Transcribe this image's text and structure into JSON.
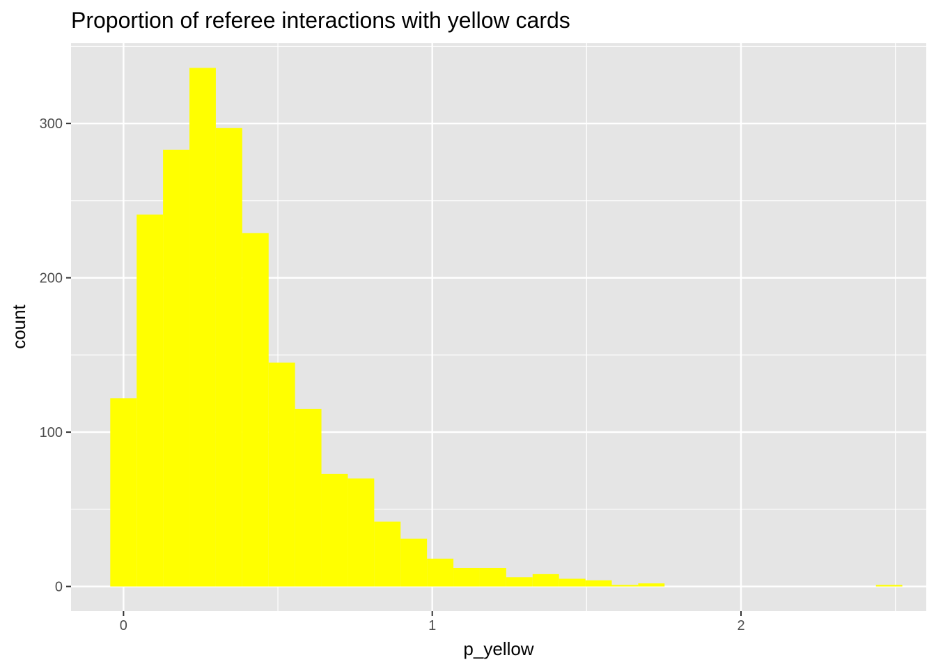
{
  "chart_data": {
    "type": "bar",
    "title": "Proportion of referee interactions with yellow cards",
    "xlabel": "p_yellow",
    "ylabel": "count",
    "x_ticks": [
      0,
      1,
      2
    ],
    "x_tick_labels": [
      "0",
      "1",
      "2"
    ],
    "y_ticks": [
      0,
      100,
      200,
      300
    ],
    "y_tick_labels": [
      "0",
      "100",
      "200",
      "300"
    ],
    "xlim": [
      -0.17,
      2.6
    ],
    "ylim": [
      -16,
      352
    ],
    "grid": true,
    "bin_width": 0.0855,
    "bin_starts": [
      -0.043,
      0.0425,
      0.128,
      0.2135,
      0.299,
      0.3845,
      0.47,
      0.5555,
      0.641,
      0.7265,
      0.812,
      0.8975,
      0.983,
      1.0685,
      1.154,
      1.2395,
      1.325,
      1.4105,
      1.496,
      1.5815,
      1.667,
      2.437
    ],
    "values": [
      122,
      241,
      283,
      336,
      297,
      229,
      145,
      115,
      73,
      70,
      42,
      31,
      18,
      12,
      12,
      6,
      8,
      5,
      4,
      1,
      2,
      1
    ],
    "colors": {
      "fill": "#FFFF00",
      "panel": "#E5E5E5",
      "grid": "#FFFFFF",
      "tick": "#333333"
    }
  }
}
